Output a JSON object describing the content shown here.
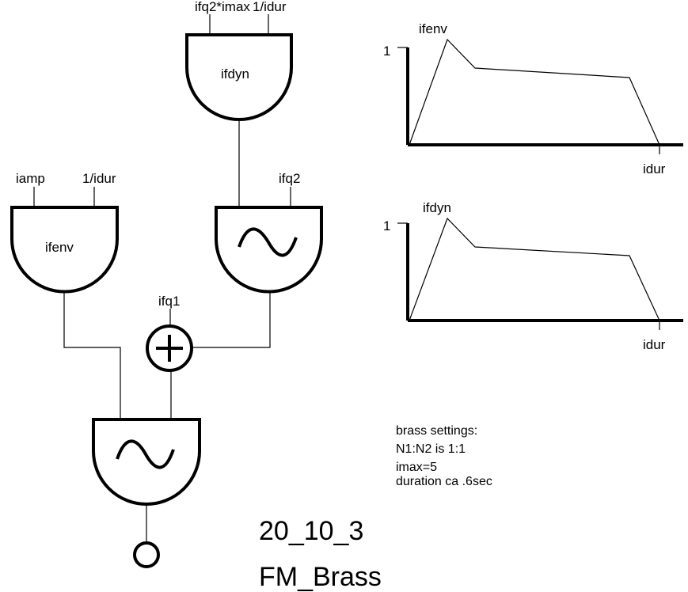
{
  "oscillators": {
    "modulator_env": {
      "name": "ifdyn",
      "inputs": [
        "ifq2*imax",
        "1/idur"
      ]
    },
    "carrier_env": {
      "name": "ifenv",
      "inputs": [
        "iamp",
        "1/idur"
      ]
    },
    "modulator_osc": {
      "inputs": [
        "ifq2"
      ]
    },
    "adder": {
      "inputs": [
        "ifq1"
      ]
    }
  },
  "graphs": [
    {
      "title": "ifenv",
      "y_tick": "1",
      "x_end_label": "idur"
    },
    {
      "title": "ifdyn",
      "y_tick": "1",
      "x_end_label": "idur"
    }
  ],
  "notes": [
    "brass settings:",
    "N1:N2 is 1:1",
    "imax=5",
    "duration ca .6sec"
  ],
  "figure_id": "20_10_3",
  "figure_title": "FM_Brass"
}
